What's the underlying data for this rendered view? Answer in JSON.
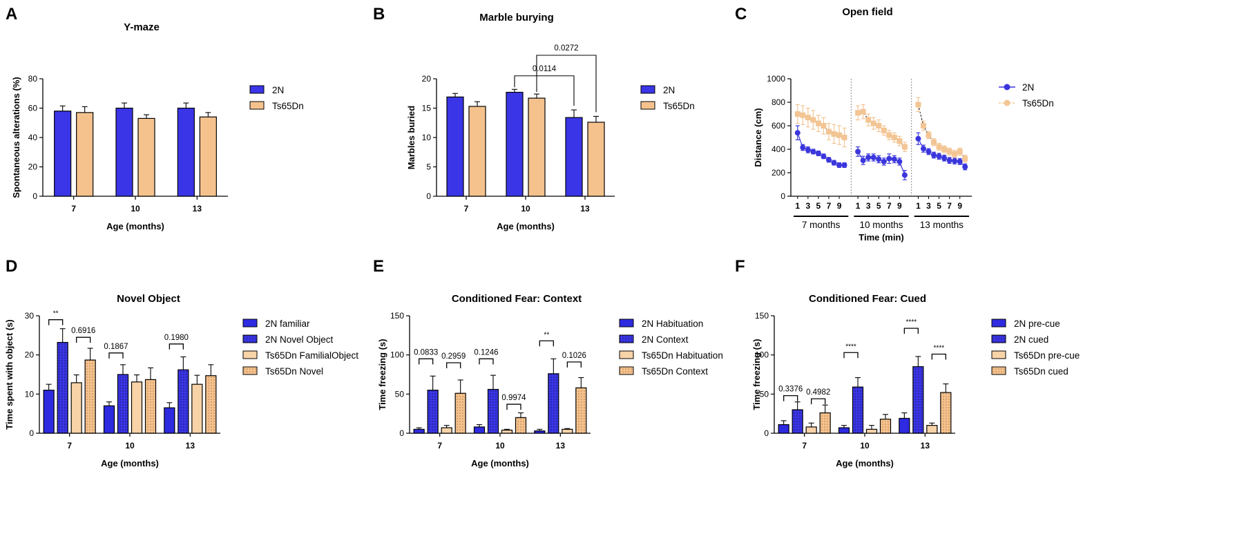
{
  "colors": {
    "wt": "#3a35e6",
    "ts": "#f5c28e",
    "wt_light": "#2e2ae0",
    "ts_light": "#f8d3a8",
    "open_field_wt": "#3b36dc",
    "open_field_ts": "#f3c594"
  },
  "chart_data": [
    {
      "id": "A",
      "type": "bar",
      "title": "Y-maze",
      "xlabel": "Age (months)",
      "ylabel": "Spontaneous alterations (%)",
      "ylim": [
        0,
        80
      ],
      "yticks": [
        0,
        20,
        40,
        60,
        80
      ],
      "categories": [
        "7",
        "10",
        "13"
      ],
      "series": [
        {
          "name": "2N",
          "color_key": "wt",
          "values": [
            58,
            60,
            60
          ],
          "errors": [
            3.5,
            3.5,
            3.5
          ]
        },
        {
          "name": "Ts65Dn",
          "color_key": "ts",
          "values": [
            57,
            53,
            54
          ],
          "errors": [
            4,
            2.5,
            3
          ]
        }
      ],
      "legend": "right"
    },
    {
      "id": "B",
      "type": "bar",
      "title": "Marble burying",
      "xlabel": "Age (months)",
      "ylabel": "Marbles buried",
      "ylim": [
        0,
        20
      ],
      "yticks": [
        0,
        5,
        10,
        15,
        20
      ],
      "categories": [
        "7",
        "10",
        "13"
      ],
      "series": [
        {
          "name": "2N",
          "color_key": "wt",
          "values": [
            16.9,
            17.7,
            13.4
          ],
          "errors": [
            0.6,
            0.5,
            1.3
          ]
        },
        {
          "name": "Ts65Dn",
          "color_key": "ts",
          "values": [
            15.3,
            16.7,
            12.6
          ],
          "errors": [
            0.8,
            0.7,
            1.0
          ]
        }
      ],
      "annotations": [
        {
          "label": "0.0114",
          "from": [
            1,
            0
          ],
          "to": [
            2,
            0
          ],
          "level": 20.5
        },
        {
          "label": "0.0272",
          "from": [
            1,
            1
          ],
          "to": [
            2,
            1
          ],
          "level": 24
        }
      ],
      "legend": "right"
    },
    {
      "id": "C",
      "type": "line",
      "title": "Open field",
      "xlabel": "Time (min)",
      "ylabel": "Distance (cm)",
      "ylim": [
        0,
        1000
      ],
      "yticks": [
        0,
        200,
        400,
        600,
        800,
        1000
      ],
      "xticks": [
        "1",
        "3",
        "5",
        "7",
        "9"
      ],
      "segments": [
        "7 months",
        "10 months",
        "13 months"
      ],
      "series": [
        {
          "name": "2N",
          "color_key": "open_field_wt",
          "values": [
            [
              540,
              415,
              395,
              380,
              365,
              340,
              310,
              285,
              265,
              265
            ],
            [
              380,
              305,
              330,
              330,
              315,
              295,
              320,
              315,
              295,
              180
            ],
            [
              490,
              405,
              380,
              350,
              340,
              325,
              305,
              300,
              295,
              250
            ]
          ],
          "errors": [
            [
              60,
              25,
              25,
              20,
              20,
              20,
              20,
              20,
              20,
              20
            ],
            [
              40,
              35,
              30,
              30,
              30,
              30,
              40,
              30,
              30,
              40
            ],
            [
              50,
              30,
              25,
              25,
              25,
              25,
              25,
              25,
              25,
              25
            ]
          ]
        },
        {
          "name": "Ts65Dn",
          "color_key": "open_field_ts",
          "values": [
            [
              700,
              690,
              670,
              650,
              620,
              600,
              550,
              530,
              520,
              500
            ],
            [
              710,
              720,
              650,
              620,
              600,
              560,
              520,
              500,
              470,
              420
            ],
            [
              780,
              600,
              520,
              460,
              420,
              400,
              380,
              360,
              380,
              320
            ]
          ],
          "errors": [
            [
              80,
              80,
              80,
              80,
              70,
              70,
              70,
              80,
              80,
              80
            ],
            [
              60,
              60,
              50,
              50,
              50,
              40,
              40,
              40,
              40,
              40
            ],
            [
              60,
              40,
              30,
              30,
              30,
              30,
              30,
              30,
              30,
              30
            ]
          ]
        }
      ],
      "legend": "right"
    },
    {
      "id": "D",
      "type": "bar",
      "title": "Novel Object",
      "xlabel": "Age (months)",
      "ylabel": "Time spent with object (s)",
      "ylim": [
        0,
        30
      ],
      "yticks": [
        0,
        10,
        20,
        30
      ],
      "categories": [
        "7",
        "10",
        "13"
      ],
      "series": [
        {
          "name": "2N familiar",
          "style": "wt_solid",
          "values": [
            11,
            7,
            6.5
          ],
          "errors": [
            1.5,
            1.0,
            1.3
          ]
        },
        {
          "name": "2N Novel Object",
          "style": "wt_dotted",
          "values": [
            23.2,
            15,
            16.2
          ],
          "errors": [
            3.5,
            2.5,
            3.3
          ]
        },
        {
          "name": "Ts65Dn FamilialObject",
          "style": "ts_solid",
          "values": [
            12.9,
            13.1,
            12.5
          ],
          "errors": [
            2.0,
            1.8,
            2.3
          ]
        },
        {
          "name": "Ts65Dn Novel",
          "style": "ts_dotted",
          "values": [
            18.7,
            13.7,
            14.7
          ],
          "errors": [
            3.0,
            3.0,
            2.8
          ]
        }
      ],
      "annotations": [
        {
          "label": "**",
          "cat": 0,
          "pair": [
            0,
            1
          ],
          "level": 29,
          "kind": "stars"
        },
        {
          "label": "0.6916",
          "cat": 0,
          "pair": [
            2,
            3
          ],
          "level": 24.5,
          "kind": "p"
        },
        {
          "label": "0.1867",
          "cat": 1,
          "pair": [
            0,
            1
          ],
          "level": 20.5,
          "kind": "p"
        },
        {
          "label": "0.1980",
          "cat": 2,
          "pair": [
            0,
            1
          ],
          "level": 22.8,
          "kind": "p"
        }
      ],
      "legend": "right"
    },
    {
      "id": "E",
      "type": "bar",
      "title": "Conditioned Fear: Context",
      "xlabel": "Age (months)",
      "ylabel": "Time freezing (s)",
      "ylim": [
        0,
        150
      ],
      "yticks": [
        0,
        50,
        100,
        150
      ],
      "categories": [
        "7",
        "10",
        "13"
      ],
      "series": [
        {
          "name": "2N Habituation",
          "style": "wt_solid",
          "values": [
            5,
            8,
            3
          ],
          "errors": [
            2,
            3,
            2
          ]
        },
        {
          "name": "2N Context",
          "style": "wt_dotted",
          "values": [
            55,
            56,
            76
          ],
          "errors": [
            18,
            18,
            19
          ]
        },
        {
          "name": "Ts65Dn Habituation",
          "style": "ts_solid",
          "values": [
            7,
            4,
            5
          ],
          "errors": [
            3,
            1,
            1
          ]
        },
        {
          "name": "Ts65Dn Context",
          "style": "ts_dotted",
          "values": [
            51,
            20,
            58
          ],
          "errors": [
            17,
            6,
            13
          ]
        }
      ],
      "annotations": [
        {
          "label": "0.0833",
          "cat": 0,
          "pair": [
            0,
            1
          ],
          "level": 95,
          "kind": "p"
        },
        {
          "label": "0.2959",
          "cat": 0,
          "pair": [
            2,
            3
          ],
          "level": 90,
          "kind": "p"
        },
        {
          "label": "0.1246",
          "cat": 1,
          "pair": [
            0,
            1
          ],
          "level": 95,
          "kind": "p"
        },
        {
          "label": "0.9974",
          "cat": 1,
          "pair": [
            2,
            3
          ],
          "level": 37,
          "kind": "p"
        },
        {
          "label": "**",
          "cat": 2,
          "pair": [
            0,
            1
          ],
          "level": 118,
          "kind": "stars"
        },
        {
          "label": "0.1026",
          "cat": 2,
          "pair": [
            2,
            3
          ],
          "level": 91,
          "kind": "p"
        }
      ],
      "legend": "right"
    },
    {
      "id": "F",
      "type": "bar",
      "title": "Conditioned Fear: Cued",
      "xlabel": "Age (months)",
      "ylabel": "Time freezing (s)",
      "ylim": [
        0,
        150
      ],
      "yticks": [
        0,
        50,
        100,
        150
      ],
      "categories": [
        "7",
        "10",
        "13"
      ],
      "series": [
        {
          "name": "2N pre-cue",
          "style": "wt_solid",
          "values": [
            11,
            7,
            19
          ],
          "errors": [
            5,
            3,
            7
          ]
        },
        {
          "name": "2N cued",
          "style": "wt_dotted",
          "values": [
            30,
            59,
            85
          ],
          "errors": [
            10,
            12,
            13
          ]
        },
        {
          "name": "Ts65Dn pre-cue",
          "style": "ts_solid",
          "values": [
            8,
            5,
            10
          ],
          "errors": [
            5,
            5,
            3
          ]
        },
        {
          "name": "Ts65Dn cued",
          "style": "ts_dotted",
          "values": [
            26,
            18,
            52
          ],
          "errors": [
            10,
            6,
            11
          ]
        }
      ],
      "annotations": [
        {
          "label": "0.3376",
          "cat": 0,
          "pair": [
            0,
            1
          ],
          "level": 48,
          "kind": "p"
        },
        {
          "label": "0.4982",
          "cat": 0,
          "pair": [
            2,
            3
          ],
          "level": 44,
          "kind": "p"
        },
        {
          "label": "****",
          "cat": 1,
          "pair": [
            0,
            1
          ],
          "level": 103,
          "kind": "stars"
        },
        {
          "label": "****",
          "cat": 2,
          "pair": [
            0,
            1
          ],
          "level": 134,
          "kind": "stars"
        },
        {
          "label": "****",
          "cat": 2,
          "pair": [
            2,
            3
          ],
          "level": 101,
          "kind": "stars"
        }
      ],
      "legend": "right"
    }
  ]
}
